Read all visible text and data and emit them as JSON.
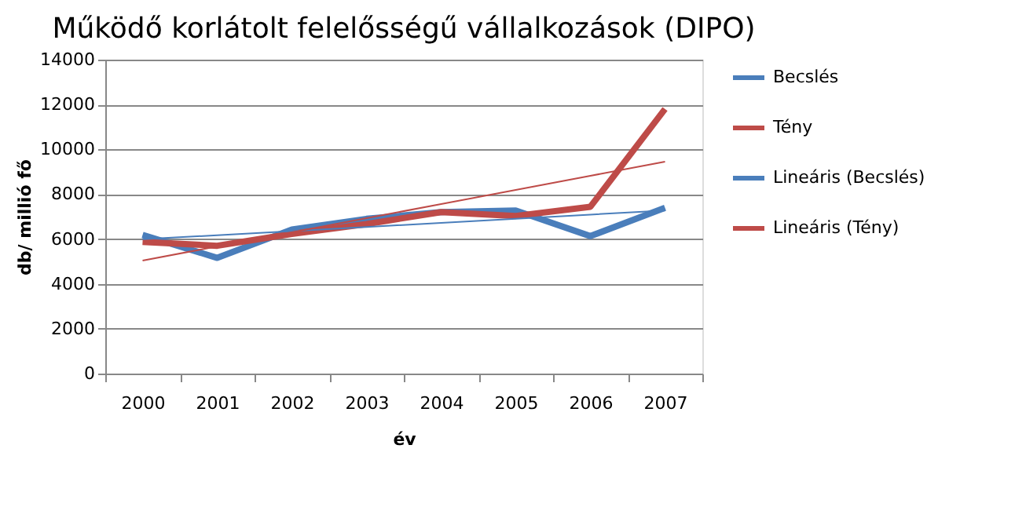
{
  "chart_data": {
    "type": "line",
    "title": "Működő korlátolt felelősségű vállalkozások (DIPO)",
    "xlabel": "év",
    "ylabel": "db/ millió fő",
    "categories": [
      "2000",
      "2001",
      "2002",
      "2003",
      "2004",
      "2005",
      "2006",
      "2007"
    ],
    "series": [
      {
        "name": "Becslés",
        "color": "#4a7ebb",
        "values": [
          6180,
          5160,
          6420,
          6900,
          7200,
          7270,
          6130,
          7390
        ]
      },
      {
        "name": "Tény",
        "color": "#be4b48",
        "values": [
          5870,
          5700,
          6230,
          6670,
          7200,
          7030,
          7440,
          11800
        ]
      },
      {
        "name": "Lineáris (Becslés)",
        "type": "line",
        "color": "#4a7ebb",
        "values": [
          5990,
          6170,
          6350,
          6540,
          6720,
          6900,
          7090,
          7270
        ]
      },
      {
        "name": "Lineáris (Tény)",
        "type": "line",
        "color": "#be4b48",
        "values": [
          5040,
          5670,
          6300,
          6930,
          7560,
          8190,
          8820,
          9450
        ]
      }
    ],
    "ylim": [
      0,
      14000
    ],
    "yticks": [
      0,
      2000,
      4000,
      6000,
      8000,
      10000,
      12000,
      14000
    ],
    "grid": "y",
    "legend": "right",
    "marker": "none"
  }
}
